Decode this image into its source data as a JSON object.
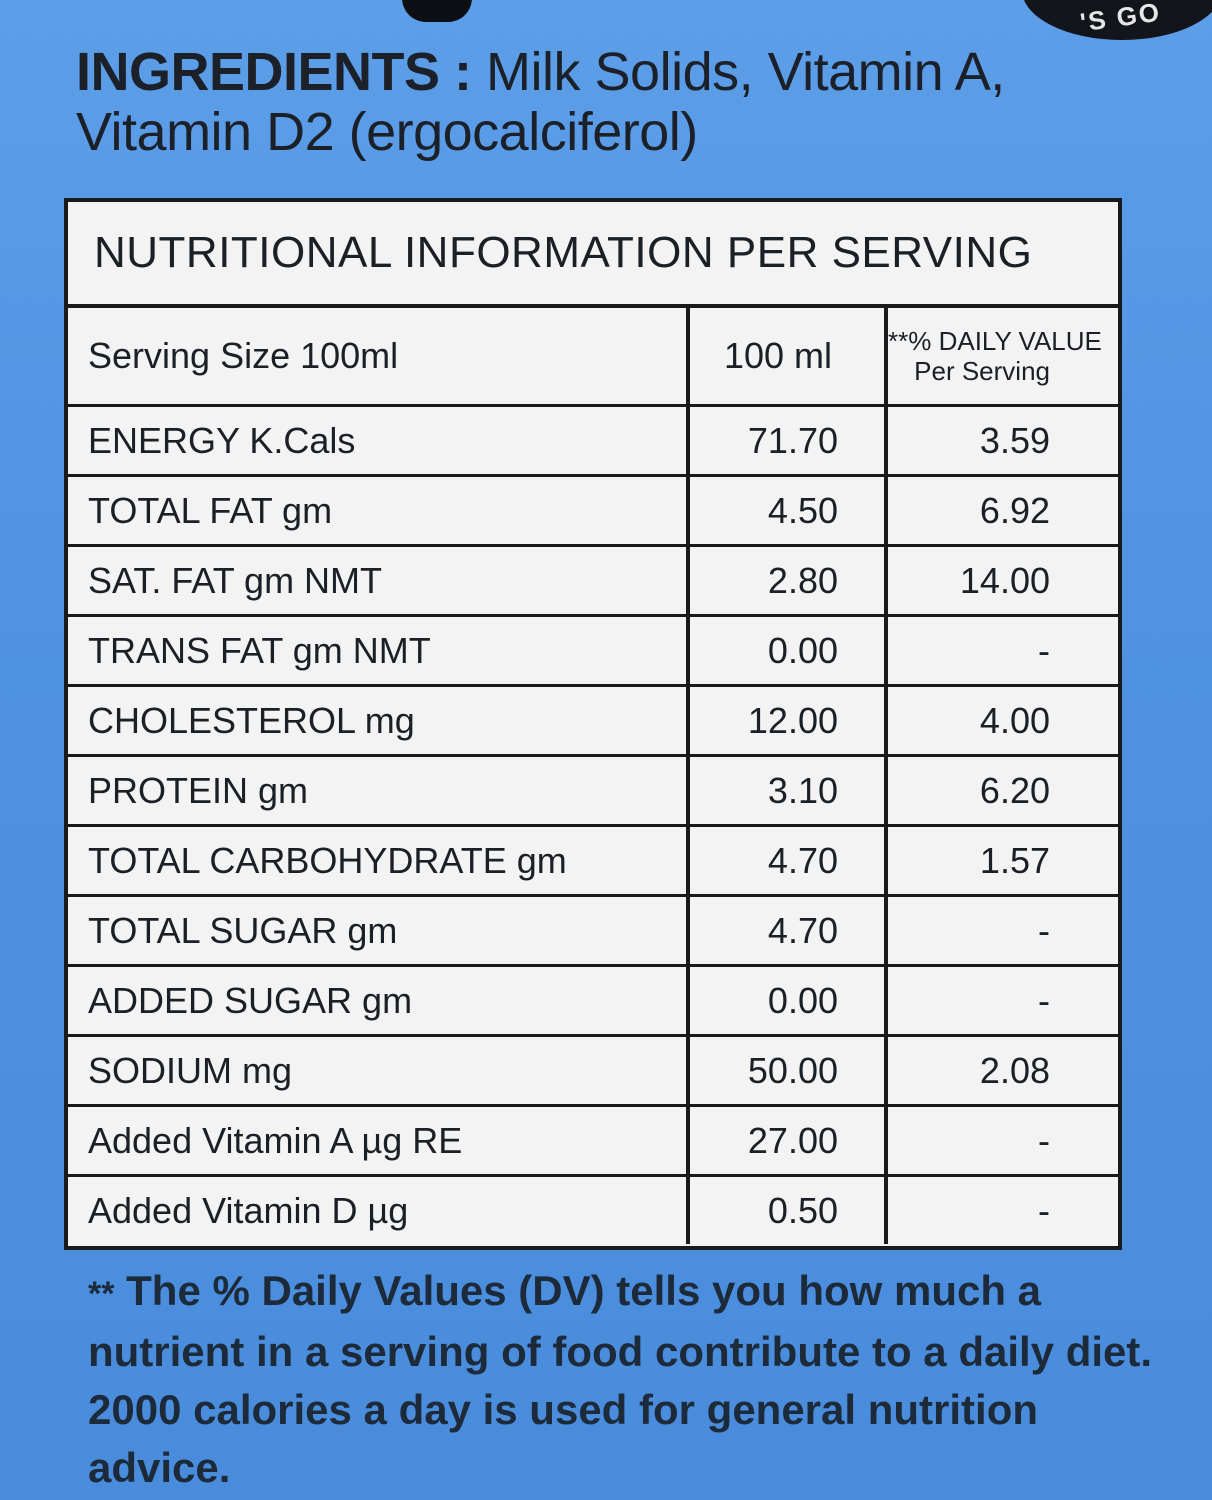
{
  "badge_text": "'S GO",
  "ingredients": {
    "label": "INGREDIENTS :",
    "text": "Milk Solids, Vitamin A, Vitamin D2 (ergocalciferol)"
  },
  "table": {
    "title": "NUTRITIONAL INFORMATION PER SERVING",
    "header": {
      "col1": "Serving Size 100ml",
      "col2": "100 ml",
      "col3_line1": "**% DAILY VALUE",
      "col3_line2": "Per Serving"
    },
    "rows": [
      {
        "name": "ENERGY K.Cals",
        "amount": "71.70",
        "dv": "3.59"
      },
      {
        "name": "TOTAL FAT gm",
        "amount": "4.50",
        "dv": "6.92"
      },
      {
        "name": "SAT. FAT gm NMT",
        "amount": "2.80",
        "dv": "14.00"
      },
      {
        "name": "TRANS FAT gm NMT",
        "amount": "0.00",
        "dv": "-"
      },
      {
        "name": "CHOLESTEROL mg",
        "amount": "12.00",
        "dv": "4.00"
      },
      {
        "name": "PROTEIN gm",
        "amount": "3.10",
        "dv": "6.20"
      },
      {
        "name": "TOTAL CARBOHYDRATE gm",
        "amount": "4.70",
        "dv": "1.57"
      },
      {
        "name": "TOTAL SUGAR  gm",
        "amount": "4.70",
        "dv": "-"
      },
      {
        "name": "ADDED SUGAR gm",
        "amount": "0.00",
        "dv": "-"
      },
      {
        "name": "SODIUM mg",
        "amount": "50.00",
        "dv": "2.08"
      },
      {
        "name": "Added Vitamin A µg RE",
        "amount": "27.00",
        "dv": "-"
      },
      {
        "name": "Added Vitamin D µg",
        "amount": "0.50",
        "dv": "-"
      }
    ]
  },
  "footnote": {
    "stars": "**",
    "text": "The % Daily Values (DV) tells you how much a nutrient in a serving of food contribute to a daily diet. 2000 calories a day is used for general nutrition advice."
  }
}
